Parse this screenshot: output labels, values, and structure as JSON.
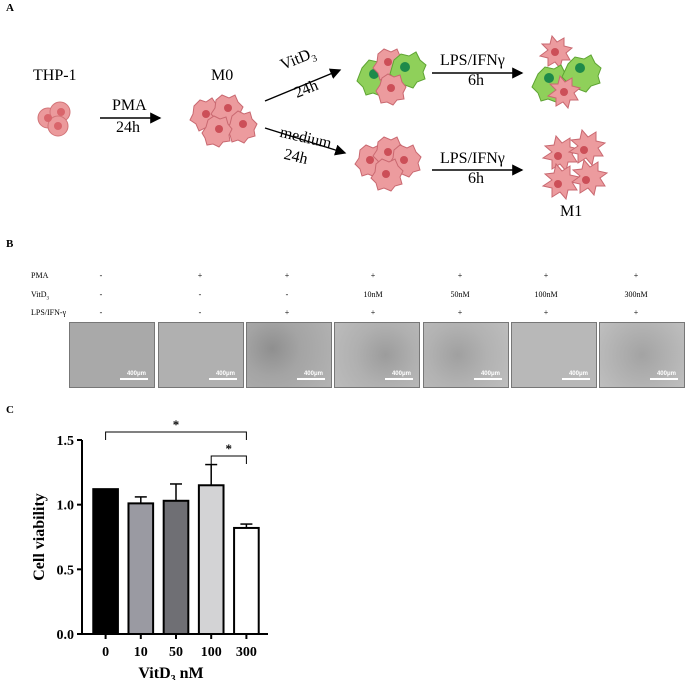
{
  "panelA": {
    "letter": "A",
    "thp1": "THP-1",
    "pma": "PMA",
    "pma_time": "24h",
    "m0": "M0",
    "vitd3_base": "VitD",
    "vitd3_sub": "3",
    "vitd3_time": "24h",
    "medium": "medium",
    "medium_time": "24h",
    "lps_top": "LPS/IFNγ",
    "lps_top_time": "6h",
    "lps_bottom": "LPS/IFNγ",
    "lps_bottom_time": "6h",
    "m1": "M1",
    "colors": {
      "cell_pink": "#e98f92",
      "nucleus_red": "#c94a52",
      "green": "#7fc94a",
      "nucleus_green": "#1f8a4a"
    }
  },
  "panelB": {
    "letter": "B",
    "row_labels": [
      "PMA",
      "VitD",
      "LPS/IFN-γ"
    ],
    "vitd_sub": "3",
    "columns": [
      {
        "pma": "-",
        "vitd": "-",
        "lps": "-"
      },
      {
        "pma": "+",
        "vitd": "-",
        "lps": "-"
      },
      {
        "pma": "+",
        "vitd": "-",
        "lps": "+"
      },
      {
        "pma": "+",
        "vitd": "10nM",
        "lps": "+"
      },
      {
        "pma": "+",
        "vitd": "50nM",
        "lps": "+"
      },
      {
        "pma": "+",
        "vitd": "100nM",
        "lps": "+"
      },
      {
        "pma": "+",
        "vitd": "300nM",
        "lps": "+"
      }
    ],
    "scale_label": "400μm"
  },
  "panelC": {
    "letter": "C",
    "chart_data": {
      "type": "bar",
      "categories": [
        "0",
        "10",
        "50",
        "100",
        "300"
      ],
      "values": [
        1.12,
        1.01,
        1.03,
        1.15,
        0.82
      ],
      "errors": [
        0.0,
        0.05,
        0.13,
        0.16,
        0.03
      ],
      "bar_colors": [
        "#000000",
        "#9a9aa2",
        "#6f6f74",
        "#d3d3d5",
        "#ffffff"
      ],
      "ylabel": "Cell viability",
      "xlabel_base": "VitD",
      "xlabel_sub": "3",
      "xlabel_unit": " nM",
      "ylim": [
        0,
        1.5
      ],
      "yticks": [
        "0.0",
        "0.5",
        "1.0",
        "1.5"
      ],
      "significance": [
        {
          "from": 0,
          "to": 4,
          "label": "*"
        },
        {
          "from": 3,
          "to": 4,
          "label": "*"
        }
      ]
    }
  }
}
